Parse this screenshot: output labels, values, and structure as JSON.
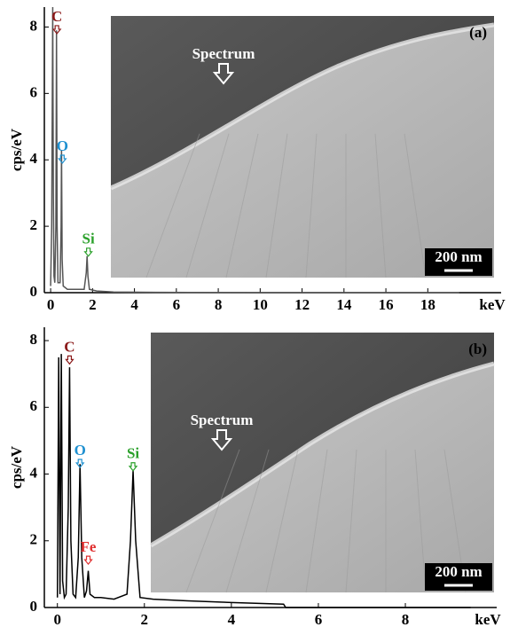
{
  "chart_data": [
    {
      "type": "line",
      "x_label": "keV",
      "y_label": "cps/eV",
      "xlim": [
        -0.3,
        21.5
      ],
      "ylim": [
        0,
        8.6
      ],
      "xticks": [
        0,
        2,
        4,
        6,
        8,
        10,
        12,
        14,
        16,
        18
      ],
      "yticks": [
        0,
        2,
        4,
        6,
        8
      ],
      "series": [
        {
          "color": "#555555",
          "x": [
            0,
            0.05,
            0.1,
            0.13,
            0.16,
            0.2,
            0.25,
            0.28,
            0.31,
            0.35,
            0.45,
            0.5,
            0.52,
            0.55,
            0.6,
            0.8,
            1.2,
            1.6,
            1.7,
            1.74,
            1.78,
            1.85,
            2.2,
            3,
            5,
            10,
            19.5
          ],
          "values": [
            0.2,
            2,
            8.6,
            3,
            0.5,
            0.3,
            2,
            7.9,
            2,
            0.3,
            0.3,
            2,
            4.3,
            1,
            0.2,
            0.1,
            0.1,
            0.1,
            0.6,
            1.1,
            0.5,
            0.1,
            0.05,
            0.02,
            0.01,
            0,
            0
          ]
        }
      ],
      "annotations": [
        {
          "text": "C",
          "x": 0.3,
          "y": 7.8,
          "color": "#8b1a1a"
        },
        {
          "text": "O",
          "x": 0.56,
          "y": 3.9,
          "color": "#1e90d0"
        },
        {
          "text": "Si",
          "x": 1.8,
          "y": 1.1,
          "color": "#2aa02a"
        }
      ],
      "inset": {
        "panel_label": "(a)",
        "marker_label": "Spectrum",
        "scale_bar": "200 nm"
      }
    },
    {
      "type": "line",
      "x_label": "keV",
      "y_label": "cps/eV",
      "xlim": [
        -0.3,
        10.1
      ],
      "ylim": [
        0,
        8.4
      ],
      "xticks": [
        0,
        2,
        4,
        6,
        8
      ],
      "yticks": [
        0,
        2,
        4,
        6,
        8
      ],
      "series": [
        {
          "color": "#000000",
          "x": [
            0,
            0.03,
            0.06,
            0.09,
            0.12,
            0.16,
            0.2,
            0.25,
            0.28,
            0.31,
            0.36,
            0.42,
            0.48,
            0.52,
            0.56,
            0.62,
            0.67,
            0.71,
            0.75,
            0.85,
            1.0,
            1.3,
            1.6,
            1.68,
            1.74,
            1.8,
            1.9,
            2.2,
            3,
            4,
            5.2,
            5.25,
            9.5
          ],
          "values": [
            0.3,
            7.5,
            0.4,
            7.6,
            0.8,
            0.3,
            0.4,
            3,
            7.2,
            2,
            0.4,
            0.3,
            1.5,
            4.3,
            1.5,
            0.3,
            0.5,
            1.1,
            0.4,
            0.3,
            0.3,
            0.25,
            0.4,
            2,
            4.1,
            2,
            0.3,
            0.25,
            0.2,
            0.15,
            0.1,
            0,
            0
          ]
        }
      ],
      "annotations": [
        {
          "text": "C",
          "x": 0.28,
          "y": 7.3,
          "color": "#8b1a1a"
        },
        {
          "text": "O",
          "x": 0.52,
          "y": 4.2,
          "color": "#1e90d0"
        },
        {
          "text": "Fe",
          "x": 0.71,
          "y": 1.3,
          "color": "#e03030"
        },
        {
          "text": "Si",
          "x": 1.74,
          "y": 4.1,
          "color": "#2aa02a"
        }
      ],
      "inset": {
        "panel_label": "(b)",
        "marker_label": "Spectrum",
        "scale_bar": "200 nm"
      }
    }
  ]
}
